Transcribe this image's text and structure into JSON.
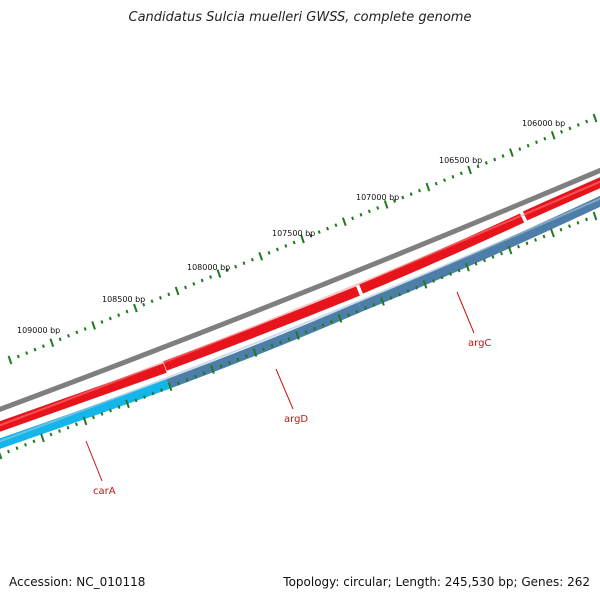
{
  "title": "Candidatus Sulcia muelleri GWSS, complete genome",
  "footer": {
    "accession": "Accession: NC_010118",
    "summary": "Topology: circular; Length: 245,530 bp; Genes: 262"
  },
  "colors": {
    "backbone": "#7f7f7f",
    "forward_cds": "#e8141c",
    "reverse_cds": "#4d7ea8",
    "reverse_cds_highlight": "#13b6ea",
    "ticks": "#1f7a1f",
    "gene_label": "#cc1111"
  },
  "bp_ticks": [
    {
      "position_bp": 106000,
      "label": "106000 bp"
    },
    {
      "position_bp": 106500,
      "label": "106500 bp"
    },
    {
      "position_bp": 107000,
      "label": "107000 bp"
    },
    {
      "position_bp": 107500,
      "label": "107500 bp"
    },
    {
      "position_bp": 108000,
      "label": "108000 bp"
    },
    {
      "position_bp": 108500,
      "label": "108500 bp"
    },
    {
      "position_bp": 109000,
      "label": "109000 bp"
    }
  ],
  "genes": [
    {
      "name": "argC",
      "strand": "reverse"
    },
    {
      "name": "argD",
      "strand": "reverse"
    },
    {
      "name": "carA",
      "strand": "reverse"
    }
  ]
}
